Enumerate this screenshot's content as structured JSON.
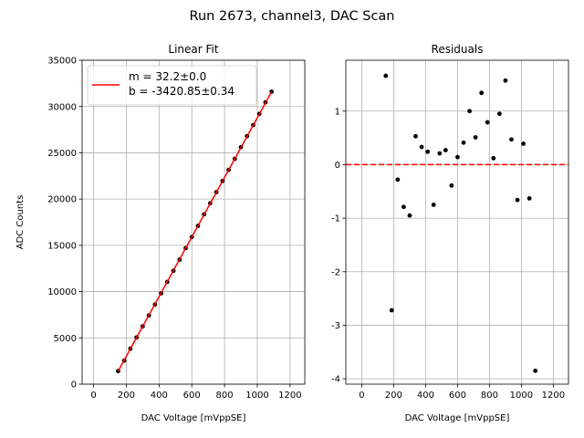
{
  "chart_data": {
    "suptitle": "Run 2673, channel3, DAC Scan",
    "panels": [
      {
        "type": "scatter",
        "title": "Linear Fit",
        "xlabel": "DAC Voltage [mVppSE]",
        "ylabel": "ADC Counts",
        "xlim": [
          -70,
          1290
        ],
        "ylim": [
          0,
          35000
        ],
        "xticks": [
          0,
          200,
          400,
          600,
          800,
          1000,
          1200
        ],
        "yticks": [
          0,
          5000,
          10000,
          15000,
          20000,
          25000,
          30000,
          35000
        ],
        "grid": true,
        "points": {
          "x": [
            150,
            187.5,
            225,
            262.5,
            300,
            337.5,
            375,
            412.5,
            450,
            487.5,
            525,
            562.5,
            600,
            637.5,
            675,
            712.5,
            750,
            787.5,
            825,
            862.5,
            900,
            937.5,
            975,
            1012.5,
            1050,
            1087.5
          ],
          "y": [
            1410,
            2540,
            3830,
            5050,
            6240,
            7420,
            8600,
            9820,
            11050,
            12250,
            13450,
            14700,
            15900,
            17100,
            18350,
            19550,
            20750,
            21950,
            23150,
            24350,
            25600,
            26800,
            28000,
            29200,
            30450,
            31600
          ]
        },
        "fit": {
          "m": 32.2,
          "b": -3420.85,
          "x_range": [
            150,
            1087.5
          ],
          "color": "#ff0000"
        },
        "legend": {
          "placement": "top-left",
          "lines": [
            "m = 32.2±0.0",
            "b = -3420.85±0.34"
          ]
        }
      },
      {
        "type": "scatter",
        "title": "Residuals",
        "xlabel": "DAC Voltage [mVppSE]",
        "ylabel": "",
        "xlim": [
          -100,
          1295
        ],
        "ylim": [
          -4.1,
          1.95
        ],
        "xticks": [
          0,
          200,
          400,
          600,
          800,
          1000,
          1200
        ],
        "yticks": [
          -4,
          -3,
          -2,
          -1,
          0,
          1
        ],
        "grid": true,
        "reference_line": {
          "y": 0,
          "style": "dashed",
          "color": "#ff0000"
        },
        "points": {
          "x": [
            150,
            187.5,
            225,
            262.5,
            300,
            337.5,
            375,
            412.5,
            450,
            487.5,
            525,
            562.5,
            600,
            637.5,
            675,
            712.5,
            750,
            787.5,
            825,
            862.5,
            900,
            937.5,
            975,
            1012.5,
            1050,
            1087.5
          ],
          "y": [
            1.66,
            -2.72,
            -0.28,
            -0.79,
            -0.95,
            0.53,
            0.33,
            0.24,
            -0.75,
            0.21,
            0.27,
            -0.39,
            0.14,
            0.41,
            1.0,
            0.51,
            1.34,
            0.79,
            0.12,
            0.95,
            1.57,
            0.47,
            -0.66,
            0.39,
            -0.63,
            -3.85
          ]
        }
      }
    ]
  }
}
